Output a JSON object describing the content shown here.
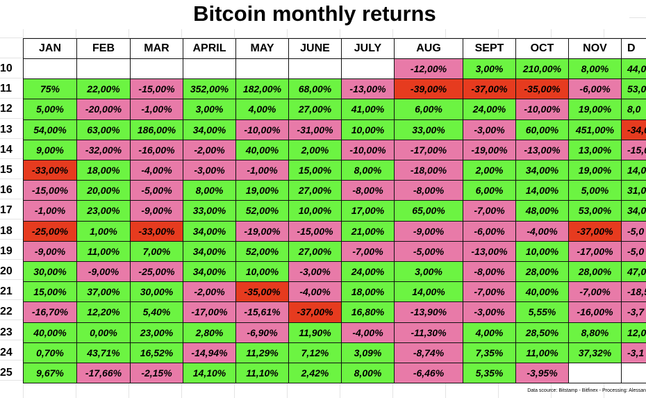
{
  "title": "Bitcoin monthly returns",
  "palette": {
    "green": "#6cf442",
    "pink": "#e87aa8",
    "red": "#e63b1f",
    "white": "#ffffff"
  },
  "table": {
    "columns": [
      "JAN",
      "FEB",
      "MAR",
      "APRIL",
      "MAY",
      "JUNE",
      "JULY",
      "AUG",
      "SEPT",
      "OCT",
      "NOV",
      "D"
    ],
    "rows": [
      {
        "year": "10",
        "cells": [
          null,
          null,
          null,
          null,
          null,
          null,
          null,
          "-12,00%",
          "3,00%",
          "210,00%",
          "8,00%",
          "44,0"
        ],
        "fills": [
          "white",
          "white",
          "white",
          "white",
          "white",
          "white",
          "white",
          "pink",
          "green",
          "green",
          "green",
          "green"
        ]
      },
      {
        "year": "11",
        "cells": [
          "75%",
          "22,00%",
          "-15,00%",
          "352,00%",
          "182,00%",
          "68,00%",
          "-13,00%",
          "-39,00%",
          "-37,00%",
          "-35,00%",
          "-6,00%",
          "53,0"
        ],
        "fills": [
          "green",
          "green",
          "pink",
          "green",
          "green",
          "green",
          "pink",
          "red",
          "red",
          "red",
          "pink",
          "green"
        ]
      },
      {
        "year": "12",
        "cells": [
          "5,00%",
          "-20,00%",
          "-1,00%",
          "3,00%",
          "4,00%",
          "27,00%",
          "41,00%",
          "6,00%",
          "24,00%",
          "-10,00%",
          "19,00%",
          "8,0"
        ],
        "fills": [
          "green",
          "pink",
          "pink",
          "green",
          "green",
          "green",
          "green",
          "green",
          "green",
          "pink",
          "green",
          "green"
        ]
      },
      {
        "year": "13",
        "cells": [
          "54,00%",
          "63,00%",
          "186,00%",
          "34,00%",
          "-10,00%",
          "-31,00%",
          "10,00%",
          "33,00%",
          "-3,00%",
          "60,00%",
          "451,00%",
          "-34,0"
        ],
        "fills": [
          "green",
          "green",
          "green",
          "green",
          "pink",
          "pink",
          "green",
          "green",
          "pink",
          "green",
          "green",
          "red"
        ]
      },
      {
        "year": "14",
        "cells": [
          "9,00%",
          "-32,00%",
          "-16,00%",
          "-2,00%",
          "40,00%",
          "2,00%",
          "-10,00%",
          "-17,00%",
          "-19,00%",
          "-13,00%",
          "13,00%",
          "-15,0"
        ],
        "fills": [
          "green",
          "pink",
          "pink",
          "pink",
          "green",
          "green",
          "pink",
          "pink",
          "pink",
          "pink",
          "green",
          "pink"
        ]
      },
      {
        "year": "15",
        "cells": [
          "-33,00%",
          "18,00%",
          "-4,00%",
          "-3,00%",
          "-1,00%",
          "15,00%",
          "8,00%",
          "-18,00%",
          "2,00%",
          "34,00%",
          "19,00%",
          "14,0"
        ],
        "fills": [
          "red",
          "green",
          "pink",
          "pink",
          "pink",
          "green",
          "green",
          "pink",
          "green",
          "green",
          "green",
          "green"
        ]
      },
      {
        "year": "16",
        "cells": [
          "-15,00%",
          "20,00%",
          "-5,00%",
          "8,00%",
          "19,00%",
          "27,00%",
          "-8,00%",
          "-8,00%",
          "6,00%",
          "14,00%",
          "5,00%",
          "31,0"
        ],
        "fills": [
          "pink",
          "green",
          "pink",
          "green",
          "green",
          "green",
          "pink",
          "pink",
          "green",
          "green",
          "green",
          "green"
        ]
      },
      {
        "year": "17",
        "cells": [
          "-1,00%",
          "23,00%",
          "-9,00%",
          "33,00%",
          "52,00%",
          "10,00%",
          "17,00%",
          "65,00%",
          "-7,00%",
          "48,00%",
          "53,00%",
          "34,0"
        ],
        "fills": [
          "pink",
          "green",
          "pink",
          "green",
          "green",
          "green",
          "green",
          "green",
          "pink",
          "green",
          "green",
          "green"
        ]
      },
      {
        "year": "18",
        "cells": [
          "-25,00%",
          "1,00%",
          "-33,00%",
          "34,00%",
          "-19,00%",
          "-15,00%",
          "21,00%",
          "-9,00%",
          "-6,00%",
          "-4,00%",
          "-37,00%",
          "-5,0"
        ],
        "fills": [
          "red",
          "green",
          "red",
          "green",
          "pink",
          "pink",
          "green",
          "pink",
          "pink",
          "pink",
          "red",
          "pink"
        ]
      },
      {
        "year": "19",
        "cells": [
          "-9,00%",
          "11,00%",
          "7,00%",
          "34,00%",
          "52,00%",
          "27,00%",
          "-7,00%",
          "-5,00%",
          "-13,00%",
          "10,00%",
          "-17,00%",
          "-5,0"
        ],
        "fills": [
          "pink",
          "green",
          "green",
          "green",
          "green",
          "green",
          "pink",
          "pink",
          "pink",
          "green",
          "pink",
          "pink"
        ]
      },
      {
        "year": "20",
        "cells": [
          "30,00%",
          "-9,00%",
          "-25,00%",
          "34,00%",
          "10,00%",
          "-3,00%",
          "24,00%",
          "3,00%",
          "-8,00%",
          "28,00%",
          "28,00%",
          "47,0"
        ],
        "fills": [
          "green",
          "pink",
          "pink",
          "green",
          "green",
          "pink",
          "green",
          "green",
          "pink",
          "green",
          "green",
          "green"
        ]
      },
      {
        "year": "21",
        "cells": [
          "15,00%",
          "37,00%",
          "30,00%",
          "-2,00%",
          "-35,00%",
          "-4,00%",
          "18,00%",
          "14,00%",
          "-7,00%",
          "40,00%",
          "-7,00%",
          "-18,5"
        ],
        "fills": [
          "green",
          "green",
          "green",
          "pink",
          "red",
          "pink",
          "green",
          "green",
          "pink",
          "green",
          "pink",
          "pink"
        ]
      },
      {
        "year": "22",
        "cells": [
          "-16,70%",
          "12,20%",
          "5,40%",
          "-17,00%",
          "-15,61%",
          "-37,00%",
          "16,80%",
          "-13,90%",
          "-3,00%",
          "5,55%",
          "-16,00%",
          "-3,7"
        ],
        "fills": [
          "pink",
          "green",
          "green",
          "pink",
          "pink",
          "red",
          "green",
          "pink",
          "pink",
          "green",
          "pink",
          "pink"
        ]
      },
      {
        "year": "23",
        "cells": [
          "40,00%",
          "0,00%",
          "23,00%",
          "2,80%",
          "-6,90%",
          "11,90%",
          "-4,00%",
          "-11,30%",
          "4,00%",
          "28,50%",
          "8,80%",
          "12,0"
        ],
        "fills": [
          "green",
          "green",
          "green",
          "green",
          "pink",
          "green",
          "pink",
          "pink",
          "green",
          "green",
          "green",
          "green"
        ]
      },
      {
        "year": "24",
        "cells": [
          "0,70%",
          "43,71%",
          "16,52%",
          "-14,94%",
          "11,29%",
          "7,12%",
          "3,09%",
          "-8,74%",
          "7,35%",
          "11,00%",
          "37,32%",
          "-3,1"
        ],
        "fills": [
          "green",
          "green",
          "green",
          "pink",
          "green",
          "green",
          "green",
          "pink",
          "green",
          "green",
          "green",
          "pink"
        ]
      },
      {
        "year": "25",
        "cells": [
          "9,67%",
          "-17,66%",
          "-2,15%",
          "14,10%",
          "11,10%",
          "2,42%",
          "8,00%",
          "-6,46%",
          "5,35%",
          "-3,95%",
          null,
          null
        ],
        "fills": [
          "green",
          "pink",
          "pink",
          "green",
          "green",
          "green",
          "green",
          "pink",
          "green",
          "pink",
          "white",
          "white"
        ]
      }
    ]
  },
  "footer": "Data scource: Bitstamp - Bitfinex - Processing: Alessan"
}
